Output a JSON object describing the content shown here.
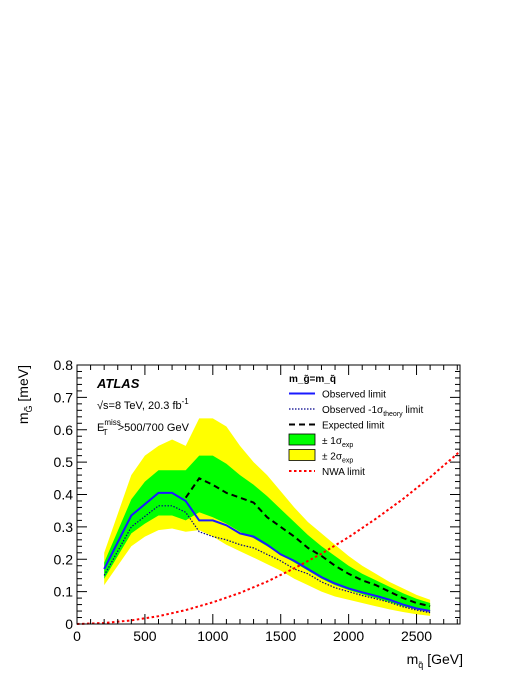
{
  "chart_data": {
    "type": "line",
    "xlabel": "m",
    "xlabel_sub": "q̃",
    "xlabel_unit": "[GeV]",
    "ylabel": "m",
    "ylabel_sub": "G̃",
    "ylabel_unit": "[meV]",
    "xlim": [
      0,
      2820
    ],
    "ylim": [
      0,
      0.8
    ],
    "x_ticks": [
      0,
      500,
      1000,
      1500,
      2000,
      2500
    ],
    "y_ticks": [
      0,
      0.1,
      0.2,
      0.3,
      0.4,
      0.5,
      0.6,
      0.7,
      0.8
    ],
    "x_tick_labels": [
      "0",
      "500",
      "1000",
      "1500",
      "2000",
      "2500"
    ],
    "y_tick_labels": [
      "0",
      "0.1",
      "0.2",
      "0.3",
      "0.4",
      "0.5",
      "0.6",
      "0.7",
      "0.8"
    ],
    "annotations": {
      "experiment": "ATLAS",
      "energy": "√s=8 TeV, 20.3 fb",
      "energy_sup": "-1",
      "cut_prefix": "E",
      "cut_sub": "T",
      "cut_sup": "miss",
      "cut_value": ">500/700 GeV"
    },
    "legend": {
      "placement": "top-right",
      "header": "m_g̃=m_q̃",
      "entries": [
        {
          "label": "Observed limit",
          "sub": ""
        },
        {
          "label": "Observed -1σ",
          "sub": "theory",
          "suffix": " limit"
        },
        {
          "label": "Expected limit",
          "sub": ""
        },
        {
          "label": "± 1σ",
          "sub": "exp"
        },
        {
          "label": "± 2σ",
          "sub": "exp"
        },
        {
          "label": "NWA limit",
          "sub": ""
        }
      ]
    },
    "series": [
      {
        "name": "Observed limit",
        "color": "#1a1aff",
        "x": [
          200,
          400,
          600,
          700,
          800,
          900,
          1000,
          1100,
          1200,
          1300,
          1400,
          1500,
          1600,
          1700,
          1800,
          1900,
          2000,
          2100,
          2200,
          2300,
          2400,
          2500,
          2600
        ],
        "y": [
          0.17,
          0.335,
          0.405,
          0.405,
          0.38,
          0.32,
          0.32,
          0.305,
          0.28,
          0.27,
          0.245,
          0.215,
          0.195,
          0.17,
          0.145,
          0.125,
          0.11,
          0.098,
          0.087,
          0.075,
          0.06,
          0.048,
          0.04
        ]
      },
      {
        "name": "Observed -1σ theory limit",
        "color": "#00008b",
        "x": [
          200,
          400,
          600,
          700,
          800,
          900,
          1000,
          1100,
          1200,
          1300,
          1400,
          1500,
          1600,
          1700,
          1800,
          1900,
          2000,
          2100,
          2200,
          2300,
          2400,
          2500,
          2600
        ],
        "y": [
          0.15,
          0.3,
          0.365,
          0.365,
          0.345,
          0.285,
          0.27,
          0.26,
          0.245,
          0.235,
          0.215,
          0.195,
          0.17,
          0.155,
          0.13,
          0.112,
          0.1,
          0.088,
          0.078,
          0.067,
          0.053,
          0.043,
          0.035
        ]
      },
      {
        "name": "Expected limit",
        "color": "#000000",
        "x": [
          800,
          900,
          1000,
          1100,
          1200,
          1300,
          1400,
          1500,
          1600,
          1700,
          1800,
          1900,
          2000,
          2100,
          2200,
          2300,
          2400,
          2500,
          2600
        ],
        "y": [
          0.39,
          0.45,
          0.43,
          0.405,
          0.39,
          0.375,
          0.33,
          0.3,
          0.27,
          0.235,
          0.21,
          0.18,
          0.155,
          0.135,
          0.12,
          0.1,
          0.08,
          0.065,
          0.055
        ]
      },
      {
        "name": "NWA limit",
        "color": "#ff0000",
        "x": [
          0,
          200,
          400,
          600,
          800,
          1000,
          1200,
          1400,
          1600,
          1800,
          2000,
          2200,
          2400,
          2600,
          2820
        ],
        "y": [
          0,
          0.003,
          0.011,
          0.024,
          0.043,
          0.067,
          0.096,
          0.131,
          0.172,
          0.217,
          0.268,
          0.325,
          0.386,
          0.453,
          0.533
        ]
      }
    ],
    "bands": [
      {
        "name": "± 2σ exp",
        "color": "#ffff00",
        "x": [
          200,
          400,
          500,
          600,
          700,
          800,
          900,
          1000,
          1100,
          1200,
          1300,
          1400,
          1500,
          1600,
          1700,
          1800,
          1900,
          2000,
          2100,
          2200,
          2300,
          2400,
          2500,
          2600
        ],
        "upper": [
          0.22,
          0.46,
          0.52,
          0.55,
          0.57,
          0.55,
          0.635,
          0.635,
          0.61,
          0.55,
          0.5,
          0.46,
          0.41,
          0.36,
          0.315,
          0.28,
          0.245,
          0.21,
          0.18,
          0.155,
          0.13,
          0.11,
          0.09,
          0.075
        ],
        "lower": [
          0.12,
          0.24,
          0.27,
          0.29,
          0.295,
          0.285,
          0.29,
          0.27,
          0.245,
          0.225,
          0.205,
          0.185,
          0.165,
          0.14,
          0.12,
          0.1,
          0.085,
          0.075,
          0.065,
          0.055,
          0.045,
          0.037,
          0.03,
          0.025
        ]
      },
      {
        "name": "± 1σ exp",
        "color": "#00ff00",
        "x": [
          200,
          400,
          500,
          600,
          700,
          800,
          900,
          1000,
          1100,
          1200,
          1300,
          1400,
          1500,
          1600,
          1700,
          1800,
          1900,
          2000,
          2100,
          2200,
          2300,
          2400,
          2500,
          2600
        ],
        "upper": [
          0.19,
          0.385,
          0.44,
          0.475,
          0.475,
          0.475,
          0.52,
          0.52,
          0.495,
          0.46,
          0.43,
          0.395,
          0.355,
          0.315,
          0.275,
          0.24,
          0.21,
          0.18,
          0.155,
          0.135,
          0.115,
          0.095,
          0.078,
          0.065
        ],
        "lower": [
          0.14,
          0.28,
          0.31,
          0.335,
          0.335,
          0.32,
          0.345,
          0.33,
          0.31,
          0.285,
          0.265,
          0.24,
          0.215,
          0.19,
          0.165,
          0.14,
          0.12,
          0.105,
          0.092,
          0.08,
          0.068,
          0.055,
          0.045,
          0.038
        ]
      }
    ]
  }
}
